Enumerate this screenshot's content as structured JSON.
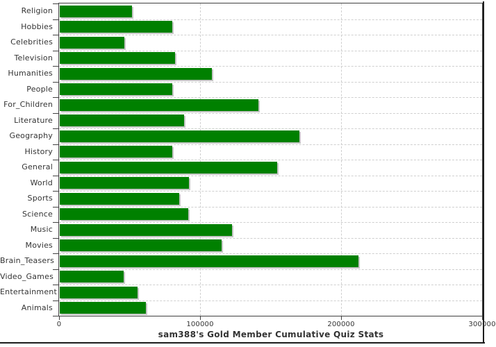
{
  "chart_data": {
    "type": "bar",
    "orientation": "horizontal",
    "title": "sam388's Gold Member Cumulative Quiz Stats",
    "categories": [
      "Religion",
      "Hobbies",
      "Celebrities",
      "Television",
      "Humanities",
      "People",
      "For_Children",
      "Literature",
      "Geography",
      "History",
      "General",
      "World",
      "Sports",
      "Science",
      "Music",
      "Movies",
      "Brain_Teasers",
      "Video_Games",
      "Entertainment",
      "Animals"
    ],
    "values": [
      51000,
      80000,
      46000,
      82000,
      108000,
      80000,
      141000,
      88000,
      170000,
      80000,
      154000,
      91500,
      84500,
      91000,
      122000,
      115000,
      212000,
      45500,
      55000,
      61000
    ],
    "xlim": [
      0,
      300000
    ],
    "x_ticks": [
      0,
      100000,
      200000,
      300000
    ],
    "x_tick_labels": [
      "0",
      "100000",
      "200000",
      "300000"
    ],
    "xlabel": "",
    "ylabel": "",
    "legend": "none",
    "grid": "dashed",
    "bar_color": "#008000",
    "bar_shadow_color": "#c6c6c6",
    "grid_color": "#cfcfcf",
    "axis_color": "#404040",
    "text_color": "#333333",
    "background_color": "#ffffff"
  }
}
